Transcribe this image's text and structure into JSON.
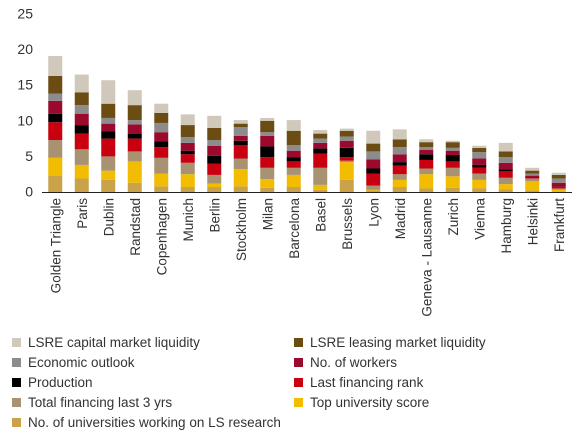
{
  "chart_data": {
    "type": "bar",
    "stacked": true,
    "title": "",
    "xlabel": "",
    "ylabel": "",
    "ylim": [
      0,
      25
    ],
    "yticks": [
      "0",
      "5",
      "10",
      "15",
      "20",
      "25"
    ],
    "grid": false,
    "legend_position": "bottom",
    "categories": [
      "Golden Triangle",
      "Paris",
      "Dublin",
      "Randstad",
      "Copenhagen",
      "Munich",
      "Berlin",
      "Stockholm",
      "Milan",
      "Barcelona",
      "Basel",
      "Brussels",
      "Lyon",
      "Madrid",
      "Geneva - Lausanne",
      "Zurich",
      "Vienna",
      "Hamburg",
      "Helsinki",
      "Frankfurt"
    ],
    "series": [
      {
        "name": "No. of universities working on LS research",
        "color": "#c9a24a",
        "values": [
          2.3,
          1.9,
          1.7,
          1.3,
          0.8,
          0.7,
          0.7,
          0.8,
          0.6,
          0.7,
          0.3,
          1.7,
          0.2,
          0.7,
          0.5,
          0.6,
          0.5,
          0.4,
          0.2,
          0.1
        ]
      },
      {
        "name": "Top university score",
        "color": "#f2bc00",
        "values": [
          2.5,
          1.9,
          1.3,
          3.0,
          1.8,
          1.8,
          0.5,
          2.4,
          1.2,
          1.7,
          0.7,
          2.5,
          0.1,
          1.0,
          2.0,
          1.6,
          1.2,
          0.7,
          1.3,
          0.2
        ]
      },
      {
        "name": "Total financing last 3 yrs",
        "color": "#a89272",
        "values": [
          2.5,
          2.2,
          2.0,
          1.4,
          2.2,
          1.6,
          1.2,
          1.5,
          1.6,
          1.0,
          2.4,
          0.2,
          0.6,
          0.8,
          0.8,
          1.2,
          0.9,
          0.9,
          0.4,
          0.2
        ]
      },
      {
        "name": "Last financing rank",
        "color": "#c8000f",
        "values": [
          2.5,
          2.2,
          2.5,
          1.8,
          1.5,
          1.2,
          1.6,
          1.9,
          1.5,
          0.9,
          2.0,
          0.5,
          1.7,
          1.2,
          1.2,
          0.9,
          0.8,
          0.9,
          0.1,
          0.3
        ]
      },
      {
        "name": "Production",
        "color": "#000000",
        "values": [
          1.2,
          1.2,
          1.0,
          0.7,
          0.8,
          0.5,
          1.1,
          0.6,
          1.5,
          0.6,
          0.7,
          1.3,
          0.7,
          0.5,
          0.8,
          0.9,
          0.4,
          0.3,
          0.1,
          0.1
        ]
      },
      {
        "name": "No. of workers",
        "color": "#9b0a2d",
        "values": [
          1.8,
          1.6,
          1.1,
          1.3,
          1.3,
          1.1,
          1.4,
          0.7,
          1.5,
          0.9,
          0.8,
          1.0,
          1.3,
          1.1,
          0.6,
          0.6,
          0.9,
          0.9,
          0.2,
          0.4
        ]
      },
      {
        "name": "Economic outlook",
        "color": "#8c8c8c",
        "values": [
          1.0,
          1.2,
          0.8,
          0.6,
          1.3,
          0.8,
          0.8,
          1.2,
          0.5,
          0.8,
          0.6,
          0.6,
          1.1,
          1.0,
          0.4,
          0.4,
          0.9,
          0.8,
          0.3,
          0.6
        ]
      },
      {
        "name": "LSRE leasing market liquidity",
        "color": "#6b4d14",
        "values": [
          2.5,
          1.8,
          2.0,
          2.1,
          1.4,
          1.7,
          1.7,
          0.5,
          1.6,
          2.0,
          0.7,
          0.8,
          1.1,
          1.1,
          0.7,
          0.8,
          0.6,
          0.8,
          0.4,
          0.5
        ]
      },
      {
        "name": "LSRE capital market liquidity",
        "color": "#cfc8bb",
        "values": [
          2.8,
          2.5,
          3.3,
          2.1,
          1.3,
          1.5,
          1.7,
          0.5,
          0.4,
          1.5,
          0.5,
          0.3,
          1.8,
          1.4,
          0.4,
          0.2,
          0.3,
          1.2,
          0.4,
          0.3
        ]
      }
    ]
  },
  "legend": {
    "items": [
      {
        "label": "LSRE capital market liquidity",
        "color": "#cfc8bb"
      },
      {
        "label": "LSRE leasing market liquidity",
        "color": "#6b4d14"
      },
      {
        "label": "Economic outlook",
        "color": "#8c8c8c"
      },
      {
        "label": "No. of workers",
        "color": "#9b0a2d"
      },
      {
        "label": "Production",
        "color": "#000000"
      },
      {
        "label": "Last financing rank",
        "color": "#c8000f"
      },
      {
        "label": "Total financing last 3 yrs",
        "color": "#a89272"
      },
      {
        "label": "Top university score",
        "color": "#f2bc00"
      },
      {
        "label": "No. of universities working on LS research",
        "color": "#c9a24a"
      }
    ]
  }
}
